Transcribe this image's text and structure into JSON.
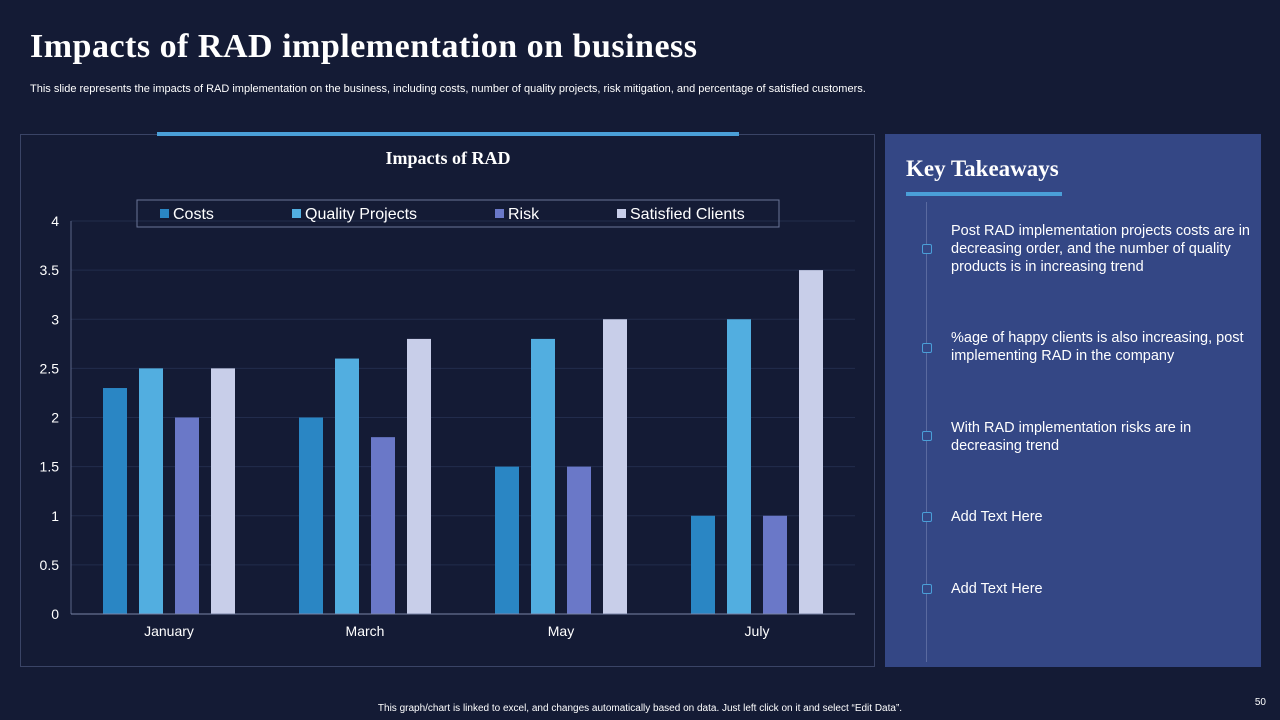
{
  "slide": {
    "title": "Impacts of RAD implementation on business",
    "subtitle": "This slide represents the impacts of RAD implementation on the business, including costs, number of quality projects, risk mitigation, and percentage of satisfied customers.",
    "footer": "This graph/chart is linked to excel, and changes automatically based on data. Just left click on it and select “Edit Data”.",
    "page_number": "50"
  },
  "colors": {
    "background": "#141b35",
    "panel": "#344785",
    "accent": "#4a9fd8"
  },
  "chart_data": {
    "type": "bar",
    "title": "Impacts of RAD",
    "categories": [
      "January",
      "March",
      "May",
      "July"
    ],
    "series": [
      {
        "name": "Costs",
        "color": "#2a86c4",
        "values": [
          2.3,
          2.0,
          1.5,
          1.0
        ]
      },
      {
        "name": "Quality Projects",
        "color": "#52aee0",
        "values": [
          2.5,
          2.6,
          2.8,
          3.0
        ]
      },
      {
        "name": "Risk",
        "color": "#6a78c8",
        "values": [
          2.0,
          1.8,
          1.5,
          1.0
        ]
      },
      {
        "name": "Satisfied Clients",
        "color": "#c8cee9",
        "values": [
          2.5,
          2.8,
          3.0,
          3.5
        ]
      }
    ],
    "ylim": [
      0,
      4
    ],
    "yticks": [
      "0",
      "0.5",
      "1",
      "1.5",
      "2",
      "2.5",
      "3",
      "3.5",
      "4"
    ],
    "xlabel": "",
    "ylabel": "",
    "legend": "top"
  },
  "takeaways": {
    "title": "Key Takeaways",
    "items": [
      "Post RAD implementation projects costs are in decreasing order, and the number of quality products is in increasing trend",
      "%age of happy clients is also increasing, post implementing RAD in the company",
      "With RAD implementation risks are in decreasing trend",
      "Add Text Here",
      "Add Text Here"
    ]
  }
}
